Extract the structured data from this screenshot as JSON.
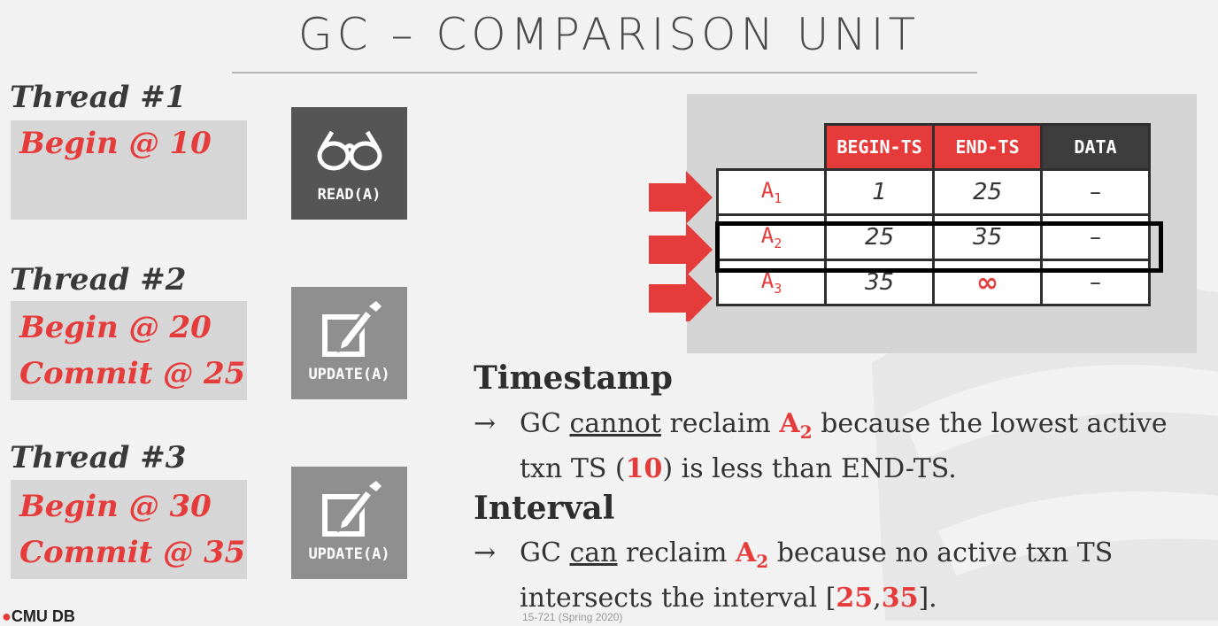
{
  "slide": {
    "title": "GC – COMPARISON UNIT",
    "logo_text": "CMU DB",
    "footer": "15-721 (Spring 2020)"
  },
  "threads": [
    {
      "label": "Thread #1",
      "lines": [
        "Begin @ 10"
      ],
      "op": "READ(A)",
      "icon": "glasses-icon"
    },
    {
      "label": "Thread #2",
      "lines": [
        "Begin @ 20",
        "Commit @ 25"
      ],
      "op": "UPDATE(A)",
      "icon": "edit-icon"
    },
    {
      "label": "Thread #3",
      "lines": [
        "Begin @ 30",
        "Commit @ 35"
      ],
      "op": "UPDATE(A)",
      "icon": "edit-icon"
    }
  ],
  "version_table": {
    "headers": [
      "BEGIN-TS",
      "END-TS",
      "DATA"
    ],
    "rows": [
      {
        "name": "A",
        "sub": "1",
        "begin": "1",
        "end": "25",
        "data": "–"
      },
      {
        "name": "A",
        "sub": "2",
        "begin": "25",
        "end": "35",
        "data": "–"
      },
      {
        "name": "A",
        "sub": "3",
        "begin": "35",
        "end": "∞",
        "data": "–"
      }
    ]
  },
  "sections": {
    "timestamp": {
      "heading": "Timestamp",
      "arrow": "→",
      "t1": "GC ",
      "u": "cannot",
      "t2": " reclaim ",
      "a": "A",
      "a_sub": "2",
      "t3": " because the lowest active",
      "t4": "txn TS (",
      "val": "10",
      "t5": ") is less than END-TS."
    },
    "interval": {
      "heading": "Interval",
      "arrow": "→",
      "t1": "GC ",
      "u": "can",
      "t2": " reclaim ",
      "a": "A",
      "a_sub": "2",
      "t3": " because no active txn TS",
      "t4": "intersects the interval [",
      "v1": "25",
      "comma": ",",
      "v2": "35",
      "t5": "]."
    }
  },
  "colors": {
    "accent": "#e63b3b",
    "dark_box": "#555555",
    "grey_box": "#8f8f8f"
  }
}
